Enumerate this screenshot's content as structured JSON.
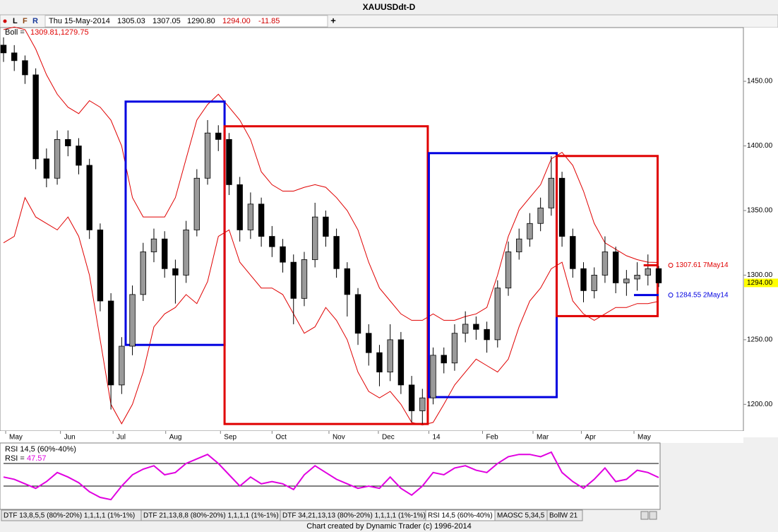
{
  "window": {
    "toolbar": {
      "letters": [
        "L",
        "F",
        "R"
      ],
      "date": "Thu 15-May-2014",
      "open": "1305.03",
      "high": "1307.05",
      "low": "1290.80",
      "close": "1294.00",
      "change": "-11.85",
      "add": "+"
    },
    "tabs": [
      "DTF 13,8,5,5 (80%-20%) 1,1,1,1 (1%-1%)",
      "DTF 21,13,8,8 (80%-20%) 1,1,1,1 (1%-1%)",
      "DTF 34,21,13,13 (80%-20%) 1,1,1,1 (1%-1%)",
      "RSI 14,5 (60%-40%)",
      "MAOSC 5,34,5",
      "BollW 21"
    ],
    "footer": "Chart created by Dynamic Trader  (c)  1996-2014"
  },
  "chart_data": [
    {
      "type": "candlestick",
      "title": "XAUUSDdt-D",
      "ohlc": [
        [
          1478,
          1484,
          1465,
          1472
        ],
        [
          1472,
          1478,
          1458,
          1466
        ],
        [
          1466,
          1470,
          1448,
          1455
        ],
        [
          1455,
          1460,
          1382,
          1390
        ],
        [
          1390,
          1398,
          1368,
          1375
        ],
        [
          1375,
          1412,
          1370,
          1405
        ],
        [
          1405,
          1412,
          1392,
          1400
        ],
        [
          1400,
          1406,
          1378,
          1385
        ],
        [
          1385,
          1390,
          1328,
          1335
        ],
        [
          1335,
          1340,
          1272,
          1280
        ],
        [
          1280,
          1286,
          1196,
          1215
        ],
        [
          1215,
          1252,
          1208,
          1245
        ],
        [
          1245,
          1292,
          1238,
          1285
        ],
        [
          1285,
          1325,
          1280,
          1318
        ],
        [
          1318,
          1336,
          1310,
          1328
        ],
        [
          1328,
          1334,
          1298,
          1305
        ],
        [
          1305,
          1312,
          1278,
          1300
        ],
        [
          1300,
          1342,
          1294,
          1335
        ],
        [
          1335,
          1382,
          1330,
          1375
        ],
        [
          1375,
          1420,
          1370,
          1410
        ],
        [
          1410,
          1416,
          1396,
          1405
        ],
        [
          1405,
          1410,
          1362,
          1370
        ],
        [
          1370,
          1376,
          1326,
          1335
        ],
        [
          1335,
          1364,
          1328,
          1355
        ],
        [
          1355,
          1360,
          1322,
          1330
        ],
        [
          1330,
          1338,
          1314,
          1322
        ],
        [
          1322,
          1328,
          1302,
          1310
        ],
        [
          1310,
          1316,
          1262,
          1282
        ],
        [
          1282,
          1318,
          1276,
          1312
        ],
        [
          1312,
          1356,
          1306,
          1345
        ],
        [
          1345,
          1350,
          1322,
          1330
        ],
        [
          1330,
          1336,
          1298,
          1305
        ],
        [
          1305,
          1310,
          1268,
          1285
        ],
        [
          1285,
          1290,
          1246,
          1255
        ],
        [
          1255,
          1262,
          1230,
          1240
        ],
        [
          1240,
          1246,
          1214,
          1225
        ],
        [
          1225,
          1262,
          1218,
          1250
        ],
        [
          1250,
          1256,
          1208,
          1215
        ],
        [
          1215,
          1222,
          1186,
          1195
        ],
        [
          1195,
          1212,
          1185,
          1205
        ],
        [
          1205,
          1244,
          1200,
          1238
        ],
        [
          1238,
          1244,
          1224,
          1232
        ],
        [
          1232,
          1262,
          1226,
          1255
        ],
        [
          1255,
          1272,
          1248,
          1262
        ],
        [
          1262,
          1268,
          1250,
          1258
        ],
        [
          1258,
          1264,
          1240,
          1250
        ],
        [
          1250,
          1296,
          1244,
          1290
        ],
        [
          1290,
          1326,
          1284,
          1318
        ],
        [
          1318,
          1336,
          1312,
          1328
        ],
        [
          1328,
          1348,
          1322,
          1340
        ],
        [
          1340,
          1360,
          1334,
          1352
        ],
        [
          1352,
          1392,
          1346,
          1375
        ],
        [
          1375,
          1380,
          1322,
          1330
        ],
        [
          1330,
          1336,
          1298,
          1305
        ],
        [
          1305,
          1310,
          1279,
          1288
        ],
        [
          1288,
          1306,
          1282,
          1300
        ],
        [
          1300,
          1330,
          1294,
          1318
        ],
        [
          1318,
          1322,
          1286,
          1294
        ],
        [
          1294,
          1304,
          1284,
          1297
        ],
        [
          1297,
          1310,
          1288,
          1300
        ],
        [
          1300,
          1316,
          1292,
          1305
        ],
        [
          1305.03,
          1307.05,
          1290.8,
          1294
        ]
      ],
      "up_color": "#9a9a9a",
      "down_color": "#000000",
      "xlim": [
        0,
        61
      ],
      "xticks": [
        {
          "value": 0.2,
          "label": "May"
        },
        {
          "value": 5.3,
          "label": "Jun"
        },
        {
          "value": 10.2,
          "label": "Jul"
        },
        {
          "value": 15.1,
          "label": "Aug"
        },
        {
          "value": 20.2,
          "label": "Sep"
        },
        {
          "value": 25.0,
          "label": "Oct"
        },
        {
          "value": 30.3,
          "label": "Nov"
        },
        {
          "value": 34.9,
          "label": "Dec"
        },
        {
          "value": 39.6,
          "label": "14"
        },
        {
          "value": 44.6,
          "label": "Feb"
        },
        {
          "value": 49.3,
          "label": "Mar"
        },
        {
          "value": 53.8,
          "label": "Apr"
        },
        {
          "value": 58.7,
          "label": "May"
        }
      ],
      "ylim": [
        1179.4,
        1491.6
      ],
      "yticks": [
        {
          "value": 1200,
          "label": "1200.00"
        },
        {
          "value": 1250,
          "label": "1250.00"
        },
        {
          "value": 1300,
          "label": "1300.00"
        },
        {
          "value": 1350,
          "label": "1350.00"
        },
        {
          "value": 1400,
          "label": "1400.00"
        },
        {
          "value": 1450,
          "label": "1450.00"
        }
      ],
      "overlays": [
        {
          "legend_label": "Boll =",
          "legend_value": "1309.81,1279.75",
          "color": "#e00000",
          "upper": [
            1490,
            1492,
            1490,
            1475,
            1455,
            1440,
            1430,
            1425,
            1435,
            1430,
            1420,
            1400,
            1360,
            1345,
            1345,
            1345,
            1360,
            1390,
            1420,
            1432,
            1440,
            1430,
            1420,
            1405,
            1380,
            1370,
            1365,
            1365,
            1368,
            1370,
            1368,
            1360,
            1350,
            1335,
            1310,
            1290,
            1280,
            1270,
            1265,
            1265,
            1270,
            1265,
            1265,
            1268,
            1270,
            1275,
            1300,
            1330,
            1350,
            1360,
            1370,
            1390,
            1395,
            1385,
            1365,
            1340,
            1325,
            1320,
            1315,
            1312,
            1310,
            1309.81
          ],
          "lower": [
            1325,
            1330,
            1360,
            1345,
            1340,
            1335,
            1345,
            1330,
            1300,
            1250,
            1200,
            1185,
            1200,
            1225,
            1260,
            1270,
            1275,
            1285,
            1278,
            1295,
            1330,
            1335,
            1310,
            1300,
            1290,
            1290,
            1285,
            1270,
            1255,
            1260,
            1275,
            1265,
            1250,
            1225,
            1210,
            1205,
            1210,
            1200,
            1186,
            1184,
            1186,
            1200,
            1215,
            1225,
            1235,
            1230,
            1225,
            1235,
            1260,
            1280,
            1290,
            1305,
            1310,
            1280,
            1270,
            1265,
            1270,
            1275,
            1275,
            1278,
            1278,
            1279.75
          ]
        }
      ],
      "boxes": [
        {
          "color": "#0000e0",
          "x": [
            11.37,
            20.58
          ],
          "y": [
            1434.3,
            1246
          ]
        },
        {
          "color": "#e00000",
          "x": [
            20.58,
            39.5
          ],
          "y": [
            1415.2,
            1184.8
          ]
        },
        {
          "color": "#0000e0",
          "x": [
            39.6,
            51.5
          ],
          "y": [
            1394.4,
            1205.6
          ]
        },
        {
          "color": "#e00000",
          "x": [
            51.5,
            60.9
          ],
          "y": [
            1392.2,
            1268.3
          ]
        }
      ],
      "levels": [
        {
          "value": 1307.61,
          "label": "1307.61 7May14",
          "color": "#e00000",
          "x": [
            59.6,
            60.96
          ]
        },
        {
          "value": 1284.55,
          "label": "1284.55 2May14",
          "color": "#0000e0",
          "x": [
            58.7,
            61
          ]
        }
      ],
      "last": {
        "value": 1294,
        "label": "1294.00"
      }
    },
    {
      "type": "line",
      "title": "RSI 14,5 (60%-40%)",
      "legend_label": "RSI =",
      "legend_value": 47.57,
      "color": "#e000e0",
      "values": [
        48,
        46,
        42,
        38,
        44,
        52,
        48,
        43,
        35,
        30,
        28,
        40,
        50,
        55,
        58,
        50,
        52,
        60,
        64,
        68,
        60,
        50,
        40,
        48,
        42,
        44,
        42,
        37,
        50,
        58,
        52,
        46,
        42,
        38,
        40,
        38,
        48,
        38,
        32,
        40,
        52,
        50,
        56,
        58,
        54,
        52,
        60,
        66,
        68,
        68,
        66,
        70,
        52,
        44,
        38,
        46,
        56,
        44,
        46,
        54,
        52,
        47.57
      ],
      "xlim": [
        0,
        61
      ],
      "ylim": [
        20,
        77.5
      ],
      "levels": [
        60,
        40
      ]
    }
  ]
}
